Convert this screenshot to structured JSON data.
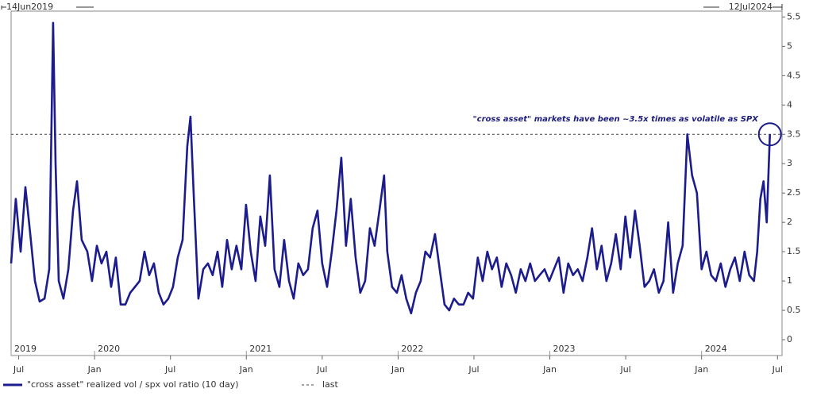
{
  "chart_data": {
    "type": "line",
    "start_label": "14Jun2019",
    "end_label": "12Jul2024",
    "annotation": "\"cross asset\" markets have been ~3.5x times as volatile as SPX",
    "xlim": [
      2019.45,
      2024.53
    ],
    "ylim": [
      -0.27,
      5.6
    ],
    "yticks": [
      0,
      0.5,
      1,
      1.5,
      2,
      2.5,
      3,
      3.5,
      4,
      4.5,
      5,
      5.5
    ],
    "xticks": [
      {
        "value": 2019.5,
        "label": "Jul"
      },
      {
        "value": 2020,
        "label": "Jan"
      },
      {
        "value": 2020.5,
        "label": "Jul"
      },
      {
        "value": 2021,
        "label": "Jan"
      },
      {
        "value": 2021.5,
        "label": "Jul"
      },
      {
        "value": 2022,
        "label": "Jan"
      },
      {
        "value": 2022.5,
        "label": "Jul"
      },
      {
        "value": 2023,
        "label": "Jan"
      },
      {
        "value": 2023.5,
        "label": "Jul"
      },
      {
        "value": 2024,
        "label": "Jan"
      },
      {
        "value": 2024.5,
        "label": "Jul"
      }
    ],
    "year_labels": [
      {
        "value": 2019.45,
        "label": "2019"
      },
      2020,
      2021,
      2022,
      2023,
      2024
    ],
    "x": [
      2019.45,
      2019.481,
      2019.513,
      2019.544,
      2019.576,
      2019.607,
      2019.638,
      2019.67,
      2019.701,
      2019.727,
      2019.743,
      2019.764,
      2019.795,
      2019.827,
      2019.858,
      2019.884,
      2019.915,
      2019.952,
      2019.983,
      2020.015,
      2020.046,
      2020.078,
      2020.109,
      2020.14,
      2020.172,
      2020.203,
      2020.235,
      2020.266,
      2020.297,
      2020.329,
      2020.36,
      2020.391,
      2020.423,
      2020.454,
      2020.486,
      2020.517,
      2020.548,
      2020.58,
      2020.611,
      2020.632,
      2020.653,
      2020.684,
      2020.716,
      2020.747,
      2020.778,
      2020.81,
      2020.841,
      2020.873,
      2020.904,
      2020.935,
      2020.967,
      2020.998,
      2021.029,
      2021.061,
      2021.092,
      2021.124,
      2021.155,
      2021.186,
      2021.218,
      2021.249,
      2021.281,
      2021.312,
      2021.343,
      2021.375,
      2021.406,
      2021.437,
      2021.469,
      2021.5,
      2021.532,
      2021.563,
      2021.594,
      2021.626,
      2021.657,
      2021.688,
      2021.72,
      2021.751,
      2021.783,
      2021.814,
      2021.845,
      2021.877,
      2021.908,
      2021.929,
      2021.96,
      2021.992,
      2022.023,
      2022.054,
      2022.086,
      2022.117,
      2022.149,
      2022.18,
      2022.211,
      2022.243,
      2022.274,
      2022.306,
      2022.337,
      2022.368,
      2022.4,
      2022.431,
      2022.462,
      2022.494,
      2022.525,
      2022.557,
      2022.588,
      2022.619,
      2022.651,
      2022.682,
      2022.713,
      2022.745,
      2022.776,
      2022.808,
      2022.839,
      2022.87,
      2022.902,
      2022.933,
      2022.965,
      2022.996,
      2023.027,
      2023.059,
      2023.09,
      2023.121,
      2023.153,
      2023.184,
      2023.216,
      2023.247,
      2023.278,
      2023.31,
      2023.341,
      2023.373,
      2023.404,
      2023.435,
      2023.467,
      2023.498,
      2023.529,
      2023.561,
      2023.592,
      2023.624,
      2023.655,
      2023.686,
      2023.718,
      2023.749,
      2023.78,
      2023.812,
      2023.843,
      2023.875,
      2023.906,
      2023.937,
      2023.969,
      2024.0,
      2024.032,
      2024.063,
      2024.094,
      2024.126,
      2024.157,
      2024.189,
      2024.22,
      2024.251,
      2024.283,
      2024.314,
      2024.345,
      2024.366,
      2024.387,
      2024.408,
      2024.429,
      2024.45
    ],
    "series": [
      {
        "name": "\"cross asset\" realized vol / spx vol ratio (10 day)",
        "color": "#1c1c8c",
        "values": [
          1.3,
          2.4,
          1.5,
          2.6,
          1.8,
          1.0,
          0.65,
          0.7,
          1.2,
          5.4,
          3.0,
          1.0,
          0.7,
          1.2,
          2.2,
          2.7,
          1.7,
          1.5,
          1.0,
          1.6,
          1.3,
          1.5,
          0.9,
          1.4,
          0.6,
          0.6,
          0.8,
          0.9,
          1.0,
          1.5,
          1.1,
          1.3,
          0.8,
          0.6,
          0.7,
          0.9,
          1.4,
          1.7,
          3.3,
          3.8,
          2.5,
          0.7,
          1.2,
          1.3,
          1.1,
          1.5,
          0.9,
          1.7,
          1.2,
          1.6,
          1.2,
          2.3,
          1.5,
          1.0,
          2.1,
          1.6,
          2.8,
          1.2,
          0.9,
          1.7,
          1.0,
          0.7,
          1.3,
          1.1,
          1.2,
          1.9,
          2.2,
          1.3,
          0.9,
          1.5,
          2.2,
          3.1,
          1.6,
          2.4,
          1.4,
          0.8,
          1.0,
          1.9,
          1.6,
          2.2,
          2.8,
          1.5,
          0.9,
          0.8,
          1.1,
          0.7,
          0.45,
          0.8,
          1.0,
          1.5,
          1.4,
          1.8,
          1.2,
          0.6,
          0.5,
          0.7,
          0.6,
          0.6,
          0.8,
          0.7,
          1.4,
          1.0,
          1.5,
          1.2,
          1.4,
          0.9,
          1.3,
          1.1,
          0.8,
          1.2,
          1.0,
          1.3,
          1.0,
          1.1,
          1.2,
          1.0,
          1.2,
          1.4,
          0.8,
          1.3,
          1.1,
          1.2,
          1.0,
          1.4,
          1.9,
          1.2,
          1.6,
          1.0,
          1.3,
          1.8,
          1.2,
          2.1,
          1.4,
          2.2,
          1.6,
          0.9,
          1.0,
          1.2,
          0.8,
          1.0,
          2.0,
          0.8,
          1.3,
          1.6,
          3.5,
          2.8,
          2.5,
          1.2,
          1.5,
          1.1,
          1.0,
          1.3,
          0.9,
          1.2,
          1.4,
          1.0,
          1.5,
          1.1,
          1.0,
          1.5,
          2.4,
          2.7,
          2.0,
          3.5
        ]
      }
    ],
    "reference_line": {
      "name": "last",
      "value": 3.5,
      "color": "#444444"
    }
  }
}
